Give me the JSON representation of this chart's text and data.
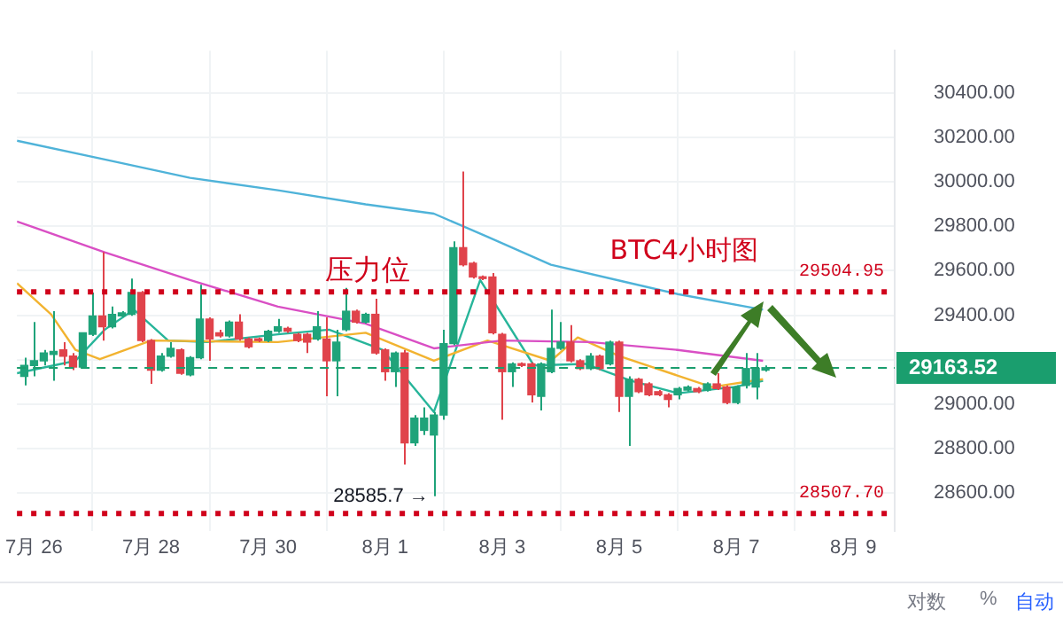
{
  "chart_data": {
    "type": "candlestick",
    "title": "BTC4小时图",
    "x": [
      "--07-25T20:00",
      "--07-26T00:00",
      "--07-26T04:00",
      "--07-26T08:00",
      "--07-26T12:00",
      "--07-26T16:00",
      "--07-26T20:00",
      "--07-27T00:00",
      "--07-27T04:00",
      "--07-27T08:00",
      "--07-27T12:00",
      "--07-27T16:00",
      "--07-27T20:00",
      "--07-28T00:00",
      "--07-28T04:00",
      "--07-28T08:00",
      "--07-28T12:00",
      "--07-28T16:00",
      "--07-28T20:00",
      "--07-29T00:00",
      "--07-29T04:00",
      "--07-29T08:00",
      "--07-29T12:00",
      "--07-29T16:00",
      "--07-29T20:00",
      "--07-30T00:00",
      "--07-30T04:00",
      "--07-30T08:00",
      "--07-30T12:00",
      "--07-30T16:00",
      "--07-30T20:00",
      "--07-31T00:00",
      "--07-31T04:00",
      "--07-31T08:00",
      "--07-31T12:00",
      "--07-31T16:00",
      "--07-31T20:00",
      "--08-01T00:00",
      "--08-01T04:00",
      "--08-01T08:00",
      "--08-01T12:00",
      "--08-01T16:00",
      "--08-01T20:00",
      "--08-02T00:00",
      "--08-02T04:00",
      "--08-02T08:00",
      "--08-02T12:00",
      "--08-02T16:00",
      "--08-02T20:00",
      "--08-03T00:00",
      "--08-03T04:00",
      "--08-03T08:00",
      "--08-03T12:00",
      "--08-03T16:00",
      "--08-03T20:00",
      "--08-04T00:00",
      "--08-04T04:00",
      "--08-04T08:00",
      "--08-04T12:00",
      "--08-04T16:00",
      "--08-04T20:00",
      "--08-05T00:00",
      "--08-05T04:00",
      "--08-05T08:00",
      "--08-05T12:00",
      "--08-05T16:00",
      "--08-05T20:00",
      "--08-06T00:00",
      "--08-06T04:00",
      "--08-06T08:00",
      "--08-06T12:00",
      "--08-06T16:00",
      "--08-06T20:00",
      "--08-07T00:00",
      "--08-07T04:00",
      "--08-07T08:00",
      "--08-07T12:00"
    ],
    "ohlc": [
      [
        29125,
        29209,
        29084,
        29174
      ],
      [
        29174,
        29369,
        29125,
        29195
      ],
      [
        29195,
        29244,
        29174,
        29230
      ],
      [
        29223,
        29418,
        29105,
        29237
      ],
      [
        29244,
        29279,
        29174,
        29216
      ],
      [
        29216,
        29230,
        29153,
        29167
      ],
      [
        29167,
        29321,
        29160,
        29321
      ],
      [
        29314,
        29502,
        29307,
        29397
      ],
      [
        29397,
        29683,
        29286,
        29348
      ],
      [
        29348,
        29439,
        29341,
        29404
      ],
      [
        29397,
        29418,
        29390,
        29411
      ],
      [
        29404,
        29565,
        29397,
        29502
      ],
      [
        29502,
        29509,
        29279,
        29286
      ],
      [
        29286,
        29293,
        29091,
        29153
      ],
      [
        29153,
        29230,
        29146,
        29216
      ],
      [
        29216,
        29279,
        29209,
        29251
      ],
      [
        29244,
        29251,
        29132,
        29139
      ],
      [
        29132,
        29216,
        29125,
        29209
      ],
      [
        29209,
        29537,
        29202,
        29383
      ],
      [
        29383,
        29390,
        29195,
        29293
      ],
      [
        29321,
        29335,
        29300,
        29307
      ],
      [
        29307,
        29376,
        29300,
        29369
      ],
      [
        29369,
        29404,
        29286,
        29293
      ],
      [
        29293,
        29300,
        29251,
        29258
      ],
      [
        29293,
        29300,
        29279,
        29286
      ],
      [
        29286,
        29335,
        29279,
        29328
      ],
      [
        29328,
        29383,
        29321,
        29348
      ],
      [
        29341,
        29348,
        29321,
        29328
      ],
      [
        29314,
        29321,
        29279,
        29286
      ],
      [
        29314,
        29321,
        29230,
        29279
      ],
      [
        29293,
        29418,
        29286,
        29348
      ],
      [
        29293,
        29390,
        29035,
        29195
      ],
      [
        29195,
        29335,
        29035,
        29279
      ],
      [
        29335,
        29523,
        29328,
        29418
      ],
      [
        29418,
        29425,
        29362,
        29369
      ],
      [
        29369,
        29411,
        29362,
        29404
      ],
      [
        29404,
        29474,
        29223,
        29230
      ],
      [
        29244,
        29251,
        29105,
        29146
      ],
      [
        29146,
        29237,
        29077,
        29230
      ],
      [
        29230,
        29244,
        28728,
        28826
      ],
      [
        28826,
        28951,
        28812,
        28937
      ],
      [
        28882,
        28986,
        28861,
        28937
      ],
      [
        28861,
        28965,
        28585.7,
        28951
      ],
      [
        28951,
        29335,
        28930,
        29272
      ],
      [
        29272,
        29732,
        29265,
        29704
      ],
      [
        29704,
        30046,
        29620,
        29627
      ],
      [
        29634,
        29641,
        29565,
        29572
      ],
      [
        29572,
        29579,
        29558,
        29565
      ],
      [
        29572,
        29590,
        29314,
        29321
      ],
      [
        29314,
        29321,
        28930,
        29146
      ],
      [
        29146,
        29188,
        29077,
        29181
      ],
      [
        29181,
        29188,
        29167,
        29174
      ],
      [
        29181,
        29188,
        29007,
        29042
      ],
      [
        29035,
        29188,
        28972,
        29181
      ],
      [
        29146,
        29425,
        29139,
        29251
      ],
      [
        29251,
        29369,
        29244,
        29279
      ],
      [
        29279,
        29355,
        29188,
        29195
      ],
      [
        29195,
        29202,
        29153,
        29160
      ],
      [
        29160,
        29230,
        29153,
        29216
      ],
      [
        29216,
        29223,
        29153,
        29160
      ],
      [
        29181,
        29286,
        29174,
        29279
      ],
      [
        29279,
        29286,
        28965,
        29035
      ],
      [
        29035,
        29125,
        28812,
        29112
      ],
      [
        29112,
        29118,
        29049,
        29056
      ],
      [
        29091,
        29098,
        29035,
        29042
      ],
      [
        29056,
        29063,
        29035,
        29042
      ],
      [
        29042,
        29049,
        28986,
        29021
      ],
      [
        29042,
        29077,
        29021,
        29070
      ],
      [
        29063,
        29084,
        29056,
        29077
      ],
      [
        29070,
        29077,
        29049,
        29056
      ],
      [
        29063,
        29098,
        29056,
        29091
      ],
      [
        29091,
        29139,
        29063,
        29070
      ],
      [
        29077,
        29084,
        29000,
        29007
      ],
      [
        29007,
        29084,
        29000,
        29077
      ],
      [
        29084,
        29230,
        29070,
        29160
      ],
      [
        29077,
        29230,
        29021,
        29160
      ],
      [
        29153,
        29174,
        29146,
        29164
      ]
    ],
    "colors": [
      "#1fa37a",
      "#1fa37a",
      "#1fa37a",
      "#1fa37a",
      "#e0434b",
      "#e0434b",
      "#1fa37a",
      "#1fa37a",
      "#e0434b",
      "#1fa37a",
      "#1fa37a",
      "#1fa37a",
      "#e0434b",
      "#e0434b",
      "#1fa37a",
      "#1fa37a",
      "#e0434b",
      "#1fa37a",
      "#1fa37a",
      "#e0434b",
      "#e0434b",
      "#1fa37a",
      "#e0434b",
      "#e0434b",
      "#e0434b",
      "#1fa37a",
      "#1fa37a",
      "#e0434b",
      "#e0434b",
      "#e0434b",
      "#1fa37a",
      "#e0434b",
      "#1fa37a",
      "#1fa37a",
      "#e0434b",
      "#1fa37a",
      "#e0434b",
      "#e0434b",
      "#1fa37a",
      "#e0434b",
      "#1fa37a",
      "#1fa37a",
      "#1fa37a",
      "#1fa37a",
      "#1fa37a",
      "#e0434b",
      "#e0434b",
      "#e0434b",
      "#e0434b",
      "#e0434b",
      "#1fa37a",
      "#e0434b",
      "#e0434b",
      "#1fa37a",
      "#1fa37a",
      "#1fa37a",
      "#e0434b",
      "#e0434b",
      "#1fa37a",
      "#e0434b",
      "#1fa37a",
      "#e0434b",
      "#1fa37a",
      "#e0434b",
      "#e0434b",
      "#e0434b",
      "#e0434b",
      "#1fa37a",
      "#1fa37a",
      "#e0434b",
      "#1fa37a",
      "#e0434b",
      "#e0434b",
      "#1fa37a",
      "#1fa37a",
      "#1fa37a",
      "#1fa37a"
    ],
    "series": [
      {
        "type": "line",
        "color": "#4fb3d9",
        "x": [
          "--07-25T17:00",
          "--07-27T05:00",
          "--07-28T16:00",
          "--07-30T04:00",
          "--07-31T16:00",
          "--08-01T20:00",
          "--08-02T18:00",
          "--08-03T20:00",
          "--08-05T02:00",
          "--08-06T00:00",
          "--08-07T11:00"
        ],
        "values": [
          30185,
          30101,
          30018,
          29962,
          29899,
          29857,
          29753,
          29627,
          29551,
          29495,
          29425
        ]
      },
      {
        "type": "line",
        "color": "#d94fc4",
        "x": [
          "--07-25T17:00",
          "--07-27T05:00",
          "--07-28T16:00",
          "--07-30T04:00",
          "--07-31T16:00",
          "--08-01T20:00",
          "--08-03T00:00",
          "--08-04T12:00",
          "--08-06T00:00",
          "--08-07T11:00"
        ],
        "values": [
          29822,
          29683,
          29558,
          29439,
          29362,
          29251,
          29286,
          29279,
          29244,
          29195
        ]
      },
      {
        "type": "line",
        "color": "#f2b330",
        "x": [
          "--07-25T17:00",
          "--07-26T07:00",
          "--07-26T17:00",
          "--07-27T03:00",
          "--07-28T00:00",
          "--07-30T04:00",
          "--07-31T16:00",
          "--08-01T20:00",
          "--08-02T18:00",
          "--08-03T20:00",
          "--08-04T07:00",
          "--08-05T00:00",
          "--08-06T14:00",
          "--08-07T11:00"
        ],
        "values": [
          29544,
          29404,
          29244,
          29202,
          29286,
          29279,
          29321,
          29195,
          29286,
          29195,
          29300,
          29216,
          29077,
          29112
        ]
      },
      {
        "type": "line",
        "color": "#27b59a",
        "x": [
          "--07-25T17:00",
          "--07-26T17:00",
          "--07-27T05:00",
          "--07-27T17:00",
          "--07-28T07:00",
          "--07-28T23:00",
          "--07-30T04:00",
          "--07-31T01:00",
          "--07-31T23:00",
          "--08-01T20:00",
          "--08-02T15:00",
          "--08-03T13:00",
          "--08-04T10:00",
          "--08-05T05:00",
          "--08-06T00:00",
          "--08-06T23:00",
          "--08-07T11:00"
        ],
        "values": [
          29139,
          29195,
          29335,
          29425,
          29286,
          29279,
          29314,
          29335,
          29244,
          28965,
          29558,
          29174,
          29181,
          29105,
          29049,
          29077,
          29105
        ]
      }
    ],
    "xlim": [
      "--07-25T17:00",
      "--08-09T17:00"
    ],
    "xticks": [
      {
        "value": "--07-26",
        "label": "7月 26"
      },
      {
        "value": "--07-28",
        "label": "7月 28"
      },
      {
        "value": "--07-30",
        "label": "7月 30"
      },
      {
        "value": "--08-01",
        "label": "8月 1"
      },
      {
        "value": "--08-03",
        "label": "8月 3"
      },
      {
        "value": "--08-05",
        "label": "8月 5"
      },
      {
        "value": "--08-07",
        "label": "8月 7"
      },
      {
        "value": "--08-09",
        "label": "8月 9"
      }
    ],
    "ylim": [
      28430,
      30590
    ],
    "yticks": [
      {
        "value": 28600,
        "label": "28600.00"
      },
      {
        "value": 28800,
        "label": "28800.00"
      },
      {
        "value": 29000,
        "label": "29000.00"
      },
      {
        "value": 29200,
        "label": null
      },
      {
        "value": 29400,
        "label": "29400.00"
      },
      {
        "value": 29600,
        "label": "29600.00"
      },
      {
        "value": 29800,
        "label": "29800.00"
      },
      {
        "value": 30000,
        "label": "30000.00"
      },
      {
        "value": 30200,
        "label": "30200.00"
      },
      {
        "value": 30400,
        "label": "30400.00"
      }
    ],
    "grid": true,
    "marker": "none",
    "line_style": "solid",
    "ref_lines": [
      {
        "axis": "y",
        "value": 29504.95,
        "label": "29504.95",
        "color": "#d0021b",
        "line_style": "dotted"
      },
      {
        "axis": "y",
        "value": 29163.52,
        "label": "29163.52",
        "color": "#1a9e6e",
        "line_style": "dashed"
      },
      {
        "axis": "y",
        "value": 28507.7,
        "label": "28507.70",
        "color": "#d0021b",
        "line_style": "dotted"
      }
    ],
    "annotations": [
      "压力位",
      {
        "text": "28585.7 →",
        "x": "--08-01T20:00",
        "y": 28585.7
      },
      "对数",
      "%",
      "自动"
    ]
  }
}
